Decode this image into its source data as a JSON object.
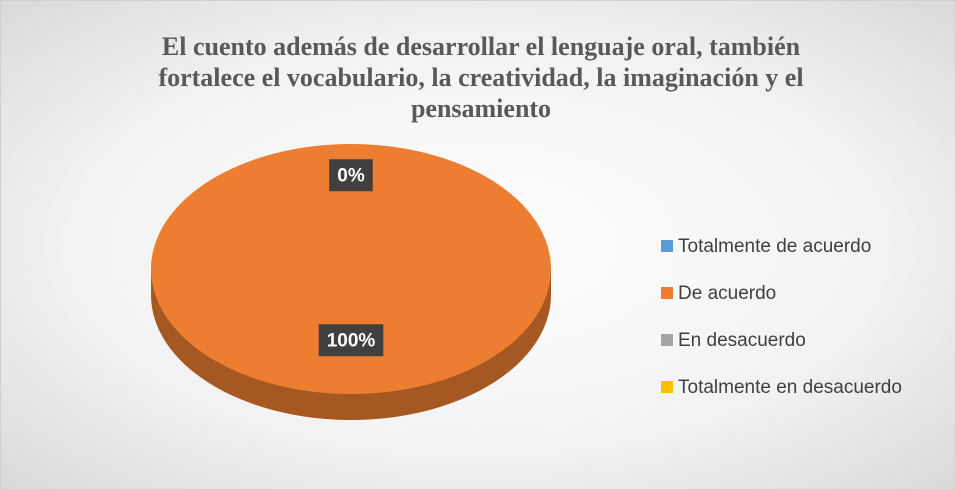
{
  "chart_data": {
    "type": "pie",
    "title": "El cuento además de desarrollar el lenguaje oral, también fortalece el vocabulario, la creatividad, la imaginación y el pensamiento",
    "categories": [
      "Totalmente de acuerdo",
      "De acuerdo",
      "En desacuerdo",
      "Totalmente en desacuerdo"
    ],
    "values": [
      0,
      100,
      0,
      0
    ],
    "value_labels": [
      "0%",
      "100%",
      null,
      null
    ],
    "colors": [
      "#5b9bd5",
      "#ed7d31",
      "#a5a5a5",
      "#ffc000"
    ],
    "legend": "right"
  }
}
